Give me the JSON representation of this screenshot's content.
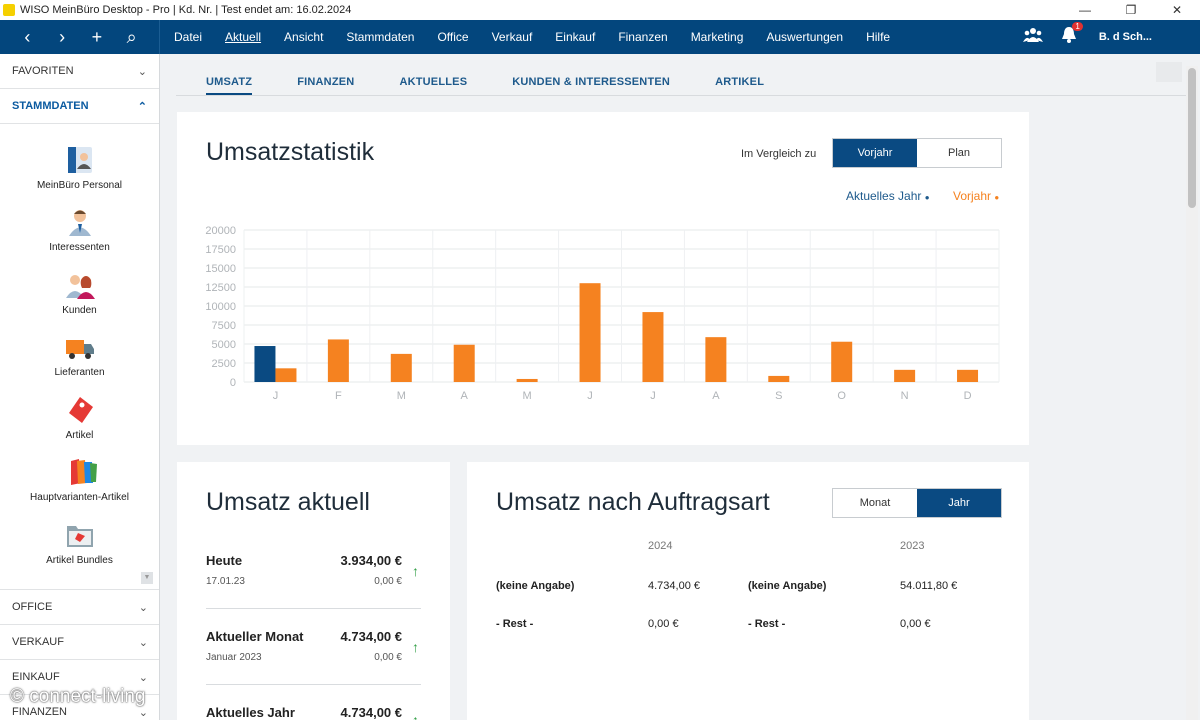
{
  "window": {
    "title": "WISO MeinBüro Desktop - Pro | Kd. Nr.  | Test endet am: 16.02.2024",
    "minimize": "—",
    "restore": "❐",
    "close": "✕"
  },
  "quickbar": {
    "back": "‹",
    "forward": "›",
    "add": "+",
    "search": "⌕"
  },
  "menu": [
    "Datei",
    "Aktuell",
    "Ansicht",
    "Stammdaten",
    "Office",
    "Verkauf",
    "Einkauf",
    "Finanzen",
    "Marketing",
    "Auswertungen",
    "Hilfe"
  ],
  "menu_active": "Aktuell",
  "header_right": {
    "notifications_count": "1",
    "user": "B. d Sch..."
  },
  "sidebar": {
    "favoriten": "FAVORITEN",
    "stammdaten": "STAMMDATEN",
    "items": [
      {
        "label": "MeinBüro Personal",
        "icon": "personal-id-icon"
      },
      {
        "label": "Interessenten",
        "icon": "person-icon"
      },
      {
        "label": "Kunden",
        "icon": "customers-icon"
      },
      {
        "label": "Lieferanten",
        "icon": "truck-icon"
      },
      {
        "label": "Artikel",
        "icon": "tag-icon"
      },
      {
        "label": "Hauptvarianten-Artikel",
        "icon": "multi-tag-icon"
      },
      {
        "label": "Artikel Bundles",
        "icon": "folder-tag-icon"
      }
    ],
    "sections": [
      "OFFICE",
      "VERKAUF",
      "EINKAUF",
      "FINANZEN"
    ]
  },
  "tabs": [
    "UMSATZ",
    "FINANZEN",
    "AKTUELLES",
    "KUNDEN & INTERESSENTEN",
    "ARTIKEL"
  ],
  "tab_active": "UMSATZ",
  "umsatzstatistik": {
    "title": "Umsatzstatistik",
    "compare_label": "Im Vergleich zu",
    "compare_options": [
      "Vorjahr",
      "Plan"
    ],
    "compare_selected": "Vorjahr",
    "legend_current": "Aktuelles Jahr",
    "legend_previous": "Vorjahr"
  },
  "chart_data": {
    "type": "bar",
    "categories": [
      "J",
      "F",
      "M",
      "A",
      "M",
      "J",
      "J",
      "A",
      "S",
      "O",
      "N",
      "D"
    ],
    "series": [
      {
        "name": "Aktuelles Jahr",
        "color": "#0a4a82",
        "values": [
          4734,
          0,
          0,
          0,
          0,
          0,
          0,
          0,
          0,
          0,
          0,
          0
        ]
      },
      {
        "name": "Vorjahr",
        "color": "#f58220",
        "values": [
          1800,
          5600,
          3700,
          4900,
          400,
          13000,
          9200,
          5900,
          800,
          5300,
          1600,
          1600
        ]
      }
    ],
    "yticks": [
      "0",
      "2500",
      "5000",
      "7500",
      "10000",
      "12500",
      "15000",
      "17500",
      "20000"
    ],
    "ylim": [
      0,
      20000
    ]
  },
  "umsatz_aktuell": {
    "title": "Umsatz aktuell",
    "rows": [
      {
        "label": "Heute",
        "value": "3.934,00 €",
        "sub": "17.01.23",
        "subvalue": "0,00 €"
      },
      {
        "label": "Aktueller Monat",
        "value": "4.734,00 €",
        "sub": "Januar 2023",
        "subvalue": "0,00 €"
      },
      {
        "label": "Aktuelles Jahr",
        "value": "4.734,00 €",
        "sub": "",
        "subvalue": ""
      }
    ]
  },
  "umsatz_auftragsart": {
    "title": "Umsatz nach Auftragsart",
    "period_options": [
      "Monat",
      "Jahr"
    ],
    "period_selected": "Jahr",
    "col_2024": "2024",
    "col_2023": "2023",
    "rows": [
      {
        "label_a": "(keine Angabe)",
        "val_a": "4.734,00 €",
        "label_b": "(keine Angabe)",
        "val_b": "54.011,80 €"
      },
      {
        "label_a": "- Rest -",
        "val_a": "0,00 €",
        "label_b": "- Rest -",
        "val_b": "0,00 €"
      }
    ]
  },
  "watermark": "© connect-living"
}
